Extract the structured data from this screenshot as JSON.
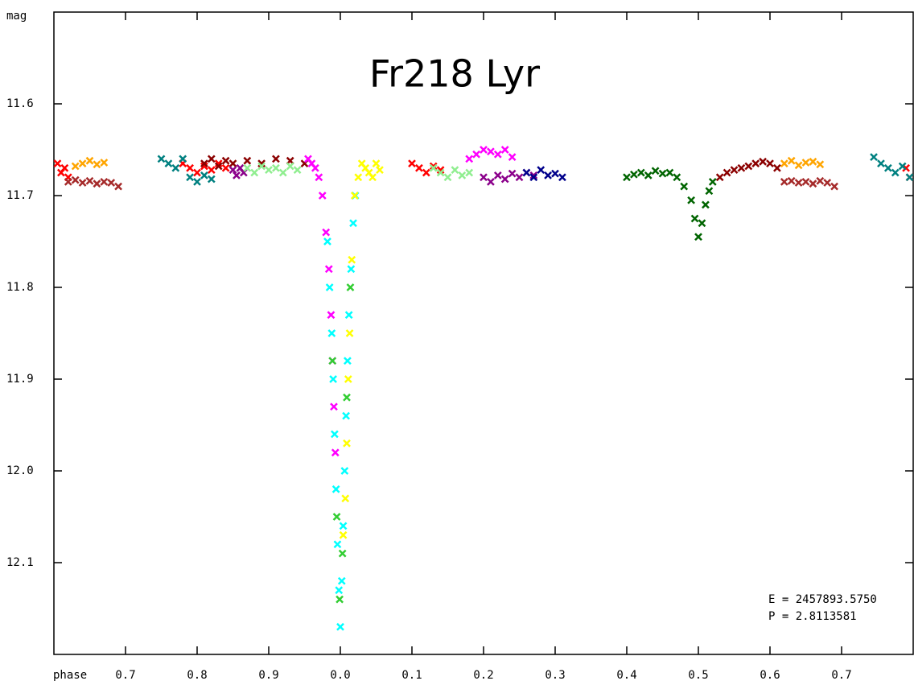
{
  "chart_data": {
    "type": "scatter",
    "title": "Fr218 Lyr",
    "x_label": "phase",
    "y_label": "mag",
    "annotations": [
      "E = 2457893.5750",
      "P = 2.8113581"
    ],
    "xlim": [
      -0.4,
      0.8
    ],
    "xticks": [
      {
        "value": -0.3,
        "label": "0.7"
      },
      {
        "value": -0.2,
        "label": "0.8"
      },
      {
        "value": -0.1,
        "label": "0.9"
      },
      {
        "value": 0,
        "label": "0.0"
      },
      0.1,
      0.2,
      0.3,
      0.4,
      0.5,
      0.6,
      0.7
    ],
    "ylim": [
      12.2,
      11.5
    ],
    "yticks": [
      11.6,
      11.7,
      11.8,
      11.9,
      {
        "value": 12,
        "label": "12.0"
      },
      12.1
    ],
    "series": [
      {
        "color": "#ff0000",
        "x": [
          -0.395,
          -0.39,
          -0.385,
          -0.38,
          -0.22,
          -0.21,
          -0.2,
          -0.19,
          -0.18,
          -0.17,
          -0.16,
          0.1,
          0.11,
          0.12,
          0.13,
          0.14,
          0.79,
          0.795
        ],
        "y": [
          11.665,
          11.675,
          11.67,
          11.68,
          11.665,
          11.67,
          11.675,
          11.668,
          11.672,
          11.665,
          11.67,
          11.665,
          11.67,
          11.675,
          11.668,
          11.672,
          11.67,
          11.68
        ]
      },
      {
        "color": "#ffa500",
        "x": [
          -0.37,
          -0.36,
          -0.35,
          -0.34,
          -0.33,
          0.62,
          0.63,
          0.64,
          0.65,
          0.66,
          0.67
        ],
        "y": [
          11.668,
          11.665,
          11.662,
          11.666,
          11.664,
          11.665,
          11.662,
          11.667,
          11.664,
          11.663,
          11.666
        ]
      },
      {
        "color": "#a52a2a",
        "x": [
          -0.38,
          -0.37,
          -0.36,
          -0.35,
          -0.34,
          -0.33,
          -0.32,
          -0.31,
          0.62,
          0.63,
          0.64,
          0.65,
          0.66,
          0.67,
          0.68,
          0.69
        ],
        "y": [
          11.685,
          11.683,
          11.686,
          11.684,
          11.687,
          11.685,
          11.686,
          11.69,
          11.685,
          11.684,
          11.686,
          11.685,
          11.687,
          11.684,
          11.686,
          11.69
        ]
      },
      {
        "color": "#008080",
        "x": [
          -0.25,
          -0.24,
          -0.23,
          -0.22,
          -0.21,
          -0.2,
          -0.19,
          -0.18,
          0.745,
          0.755,
          0.765,
          0.775,
          0.785,
          0.795
        ],
        "y": [
          11.66,
          11.665,
          11.67,
          11.66,
          11.68,
          11.685,
          11.678,
          11.682,
          11.658,
          11.665,
          11.67,
          11.675,
          11.668,
          11.68
        ]
      },
      {
        "color": "#8b0000",
        "x": [
          -0.19,
          -0.18,
          -0.17,
          -0.16,
          -0.15,
          -0.13,
          -0.11,
          -0.09,
          -0.07,
          -0.05,
          0.53,
          0.54,
          0.55,
          0.56,
          0.57,
          0.58,
          0.59,
          0.6,
          0.61
        ],
        "y": [
          11.665,
          11.66,
          11.668,
          11.662,
          11.665,
          11.662,
          11.665,
          11.66,
          11.662,
          11.665,
          11.68,
          11.675,
          11.672,
          11.67,
          11.668,
          11.665,
          11.663,
          11.665,
          11.67
        ]
      },
      {
        "color": "#8b008b",
        "x": [
          -0.15,
          -0.145,
          -0.14,
          -0.135,
          0.2,
          0.21,
          0.22,
          0.23,
          0.24,
          0.25,
          0.26,
          0.27
        ],
        "y": [
          11.672,
          11.678,
          11.67,
          11.675,
          11.68,
          11.685,
          11.678,
          11.682,
          11.676,
          11.68,
          11.675,
          11.678
        ]
      },
      {
        "color": "#90ee90",
        "x": [
          -0.13,
          -0.12,
          -0.11,
          -0.1,
          -0.09,
          -0.08,
          -0.07,
          -0.06,
          0.13,
          0.14,
          0.15,
          0.16,
          0.17,
          0.18
        ],
        "y": [
          11.67,
          11.675,
          11.668,
          11.672,
          11.67,
          11.675,
          11.668,
          11.672,
          11.67,
          11.675,
          11.68,
          11.672,
          11.678,
          11.675
        ]
      },
      {
        "color": "#ff00ff",
        "x": [
          -0.045,
          -0.04,
          -0.035,
          -0.03,
          -0.025,
          -0.02,
          -0.016,
          -0.013,
          -0.011,
          -0.009,
          -0.007,
          0.18,
          0.19,
          0.2,
          0.21,
          0.22,
          0.23,
          0.24
        ],
        "y": [
          11.66,
          11.665,
          11.67,
          11.68,
          11.7,
          11.74,
          11.78,
          11.83,
          11.88,
          11.93,
          11.98,
          11.66,
          11.655,
          11.65,
          11.652,
          11.655,
          11.65,
          11.658
        ]
      },
      {
        "color": "#00ffff",
        "x": [
          -0.018,
          -0.015,
          -0.012,
          -0.01,
          -0.008,
          -0.006,
          -0.004,
          -0.002,
          0,
          0.002,
          0.004,
          0.006,
          0.008,
          0.01,
          0.012,
          0.015,
          0.018,
          0.021
        ],
        "y": [
          11.75,
          11.8,
          11.85,
          11.9,
          11.96,
          12.02,
          12.08,
          12.13,
          12.17,
          12.12,
          12.06,
          12.0,
          11.94,
          11.88,
          11.83,
          11.78,
          11.73,
          11.7
        ]
      },
      {
        "color": "#32cd32",
        "x": [
          -0.011,
          -0.005,
          -0.001,
          0.003,
          0.009,
          0.014
        ],
        "y": [
          11.88,
          12.05,
          12.14,
          12.09,
          11.92,
          11.8
        ]
      },
      {
        "color": "#ffff00",
        "x": [
          0.004,
          0.007,
          0.009,
          0.011,
          0.013,
          0.016,
          0.02,
          0.025,
          0.03,
          0.035,
          0.04,
          0.045,
          0.05,
          0.055
        ],
        "y": [
          12.07,
          12.03,
          11.97,
          11.9,
          11.85,
          11.77,
          11.7,
          11.68,
          11.665,
          11.67,
          11.675,
          11.68,
          11.665,
          11.672
        ]
      },
      {
        "color": "#006400",
        "x": [
          0.4,
          0.41,
          0.42,
          0.43,
          0.44,
          0.45,
          0.46,
          0.47,
          0.48,
          0.49,
          0.495,
          0.5,
          0.505,
          0.51,
          0.515,
          0.52
        ],
        "y": [
          11.68,
          11.677,
          11.675,
          11.678,
          11.673,
          11.676,
          11.675,
          11.68,
          11.69,
          11.705,
          11.725,
          11.745,
          11.73,
          11.71,
          11.695,
          11.685
        ]
      },
      {
        "color": "#00008b",
        "x": [
          0.26,
          0.27,
          0.28,
          0.29,
          0.3,
          0.31
        ],
        "y": [
          11.675,
          11.68,
          11.672,
          11.678,
          11.676,
          11.68
        ]
      }
    ]
  }
}
